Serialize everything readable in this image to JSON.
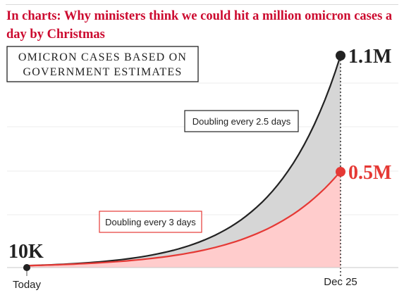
{
  "headline": "In charts: Why ministers think we could hit a million omicron cases a day by Christmas",
  "chart_data": {
    "type": "area",
    "title_lines": [
      "OMICRON CASES BASED ON",
      "GOVERNMENT ESTIMATES"
    ],
    "x": [
      "Today",
      "Dec 25"
    ],
    "x_tick_labels": [
      "Today",
      "Dec 25"
    ],
    "start_value": 10000,
    "start_label": "10K",
    "series": [
      {
        "name": "Doubling every 2.5 days",
        "end_value": 1100000,
        "end_label": "1.1M",
        "color": "#222222",
        "fill": "#d6d6d6"
      },
      {
        "name": "Doubling every 3 days",
        "end_value": 500000,
        "end_label": "0.5M",
        "color": "#e53935",
        "fill": "#ffcccc"
      }
    ],
    "grid": true
  }
}
